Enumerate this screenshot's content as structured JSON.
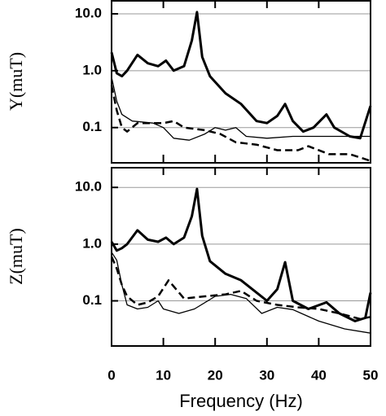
{
  "chart_data": [
    {
      "type": "line",
      "ylabel": "Y(muT)",
      "log_y": true,
      "grid": true,
      "xlim": [
        0,
        50
      ],
      "ylim": [
        0.024,
        17.5
      ],
      "yticks": [
        {
          "value": 10,
          "label": "10.0"
        },
        {
          "value": 1,
          "label": "1.0"
        },
        0.1
      ],
      "series": [
        {
          "color": "#000000",
          "style": "thick",
          "x": [
            0,
            1,
            2,
            3,
            5,
            7,
            9,
            10.5,
            12,
            14,
            15.5,
            16.5,
            17.5,
            19,
            22,
            25,
            28,
            30,
            32,
            33.5,
            35,
            37,
            39,
            41.5,
            43,
            46,
            48,
            50
          ],
          "values": [
            2.1,
            0.9,
            0.8,
            1.0,
            1.9,
            1.35,
            1.2,
            1.5,
            1.0,
            1.2,
            3.4,
            10.7,
            1.75,
            0.8,
            0.4,
            0.26,
            0.13,
            0.12,
            0.16,
            0.26,
            0.13,
            0.085,
            0.1,
            0.17,
            0.1,
            0.07,
            0.065,
            0.24
          ]
        },
        {
          "color": "#000000",
          "style": "thin",
          "x": [
            0,
            1,
            2,
            4,
            8,
            10,
            12,
            15,
            18,
            20,
            22,
            24,
            26,
            30,
            35,
            40,
            45,
            50
          ],
          "values": [
            0.77,
            0.29,
            0.17,
            0.13,
            0.12,
            0.1,
            0.065,
            0.06,
            0.077,
            0.1,
            0.09,
            0.1,
            0.07,
            0.065,
            0.07,
            0.07,
            0.07,
            0.07
          ]
        },
        {
          "color": "#000000",
          "style": "dashed",
          "x": [
            0,
            1,
            2,
            3,
            5,
            8,
            10,
            12,
            14,
            18,
            21,
            24,
            28,
            32,
            36,
            38,
            42,
            46,
            50
          ],
          "values": [
            0.55,
            0.2,
            0.1,
            0.085,
            0.12,
            0.12,
            0.12,
            0.13,
            0.1,
            0.09,
            0.077,
            0.055,
            0.05,
            0.04,
            0.04,
            0.047,
            0.034,
            0.034,
            0.026
          ]
        }
      ]
    },
    {
      "type": "line",
      "ylabel": "Z(muT)",
      "xlabel": "Frequency (Hz)",
      "log_y": true,
      "grid": true,
      "xlim": [
        0,
        50
      ],
      "ylim": [
        0.016,
        23
      ],
      "xticks": [
        0,
        10,
        20,
        30,
        40,
        50
      ],
      "yticks": [
        {
          "value": 10,
          "label": "10.0"
        },
        {
          "value": 1,
          "label": "1.0"
        },
        0.1
      ],
      "series": [
        {
          "color": "#000000",
          "style": "thick",
          "x": [
            0,
            1,
            2,
            3,
            5,
            7,
            9,
            10.5,
            12,
            14,
            15.5,
            16.5,
            17.5,
            19,
            22,
            25,
            28,
            30,
            32,
            33.5,
            35,
            38,
            41.5,
            44,
            47,
            49,
            50
          ],
          "values": [
            1.1,
            0.77,
            0.85,
            1.0,
            1.75,
            1.2,
            1.1,
            1.3,
            1.0,
            1.3,
            3.1,
            9.4,
            1.4,
            0.5,
            0.3,
            0.23,
            0.14,
            0.1,
            0.16,
            0.48,
            0.1,
            0.072,
            0.094,
            0.06,
            0.044,
            0.05,
            0.14
          ]
        },
        {
          "color": "#000000",
          "style": "thin",
          "x": [
            0,
            1,
            2,
            3,
            5,
            7,
            9,
            10,
            13,
            16,
            20,
            23,
            26,
            29,
            32,
            35,
            40,
            45,
            50
          ],
          "values": [
            0.72,
            0.52,
            0.19,
            0.085,
            0.072,
            0.077,
            0.1,
            0.072,
            0.06,
            0.072,
            0.12,
            0.13,
            0.11,
            0.06,
            0.077,
            0.07,
            0.044,
            0.032,
            0.027
          ]
        },
        {
          "color": "#000000",
          "style": "dashed",
          "x": [
            0,
            1,
            2,
            3,
            5,
            7,
            9,
            11,
            12,
            14,
            18,
            22,
            25,
            28,
            32,
            36,
            40,
            44,
            48,
            50
          ],
          "values": [
            0.6,
            0.37,
            0.19,
            0.12,
            0.085,
            0.094,
            0.12,
            0.23,
            0.18,
            0.11,
            0.12,
            0.13,
            0.15,
            0.1,
            0.085,
            0.077,
            0.072,
            0.06,
            0.048,
            0.052
          ]
        }
      ]
    }
  ]
}
